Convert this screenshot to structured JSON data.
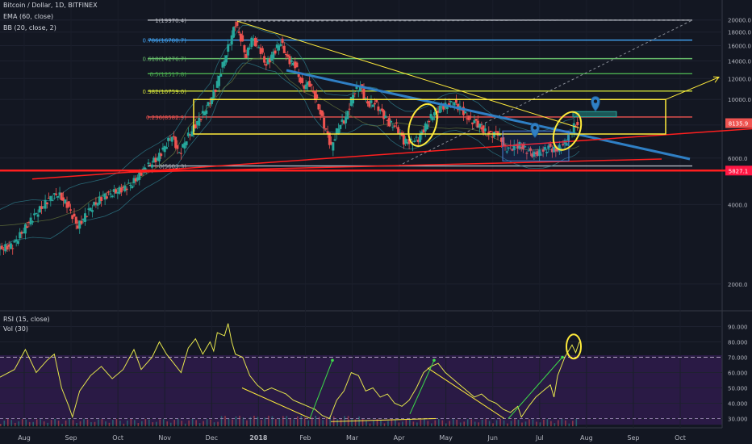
{
  "header": {
    "symbol": "Bitcoin / Dollar, 1D, BITFINEX",
    "ema": "EMA (60, close)",
    "bb": "BB (20, close, 2)",
    "rsi": "RSI (15, close)",
    "vol": "Vol (30)"
  },
  "chart_data": [
    {
      "type": "line",
      "role": "price",
      "title": "Bitcoin / Dollar, 1D, BITFINEX",
      "yscale": "log",
      "ylim": [
        1700,
        22500
      ],
      "y_ticks": [
        2000,
        4000,
        6000,
        8000,
        10000,
        12000,
        14000,
        16000,
        18000,
        20000
      ],
      "y_tick_labels": [
        "2000.0",
        "4000.0",
        "6000.0",
        "8000.0",
        "10000.0",
        "12000.0",
        "14000.0",
        "16000.0",
        "18000.0",
        "20000.0"
      ],
      "x_ticks": [
        "Aug",
        "Sep",
        "Oct",
        "Nov",
        "Dec",
        "2018",
        "Feb",
        "Mar",
        "Apr",
        "May",
        "Jun",
        "Jul",
        "Aug",
        "Sep",
        "Oct"
      ],
      "series": [
        {
          "values": [
            [
              0,
              2700
            ],
            [
              8,
              2800
            ],
            [
              18,
              3500
            ],
            [
              28,
              4200
            ],
            [
              33,
              4400
            ],
            [
              38,
              4000
            ],
            [
              44,
              3300
            ],
            [
              50,
              3800
            ],
            [
              58,
              4300
            ],
            [
              66,
              4500
            ],
            [
              74,
              4800
            ],
            [
              80,
              5400
            ],
            [
              88,
              6000
            ],
            [
              96,
              7300
            ],
            [
              100,
              6200
            ],
            [
              104,
              7100
            ],
            [
              110,
              8200
            ],
            [
              116,
              9500
            ],
            [
              120,
              11000
            ],
            [
              124,
              13500
            ],
            [
              128,
              16500
            ],
            [
              131,
              19500
            ],
            [
              134,
              17000
            ],
            [
              137,
              14500
            ],
            [
              140,
              17000
            ],
            [
              144,
              15800
            ],
            [
              148,
              13500
            ],
            [
              152,
              15000
            ],
            [
              156,
              16500
            ],
            [
              160,
              14200
            ],
            [
              164,
              13500
            ],
            [
              168,
              11200
            ],
            [
              172,
              11500
            ],
            [
              176,
              9800
            ],
            [
              180,
              8000
            ],
            [
              184,
              6600
            ],
            [
              188,
              7900
            ],
            [
              192,
              8500
            ],
            [
              196,
              10500
            ],
            [
              200,
              11200
            ],
            [
              204,
              9600
            ],
            [
              208,
              9700
            ],
            [
              212,
              8900
            ],
            [
              216,
              8100
            ],
            [
              220,
              7900
            ],
            [
              224,
              6950
            ],
            [
              228,
              6900
            ],
            [
              232,
              7100
            ],
            [
              236,
              7900
            ],
            [
              240,
              8800
            ],
            [
              244,
              9300
            ],
            [
              248,
              9500
            ],
            [
              252,
              9700
            ],
            [
              256,
              9100
            ],
            [
              260,
              8400
            ],
            [
              264,
              8200
            ],
            [
              268,
              7600
            ],
            [
              272,
              7350
            ],
            [
              276,
              7500
            ],
            [
              280,
              6500
            ],
            [
              284,
              6600
            ],
            [
              288,
              6700
            ],
            [
              292,
              6400
            ],
            [
              296,
              6200
            ],
            [
              300,
              6300
            ],
            [
              304,
              6600
            ],
            [
              308,
              6400
            ],
            [
              312,
              6700
            ],
            [
              316,
              7400
            ],
            [
              318,
              7900
            ],
            [
              320,
              8100
            ]
          ]
        }
      ],
      "fib_levels": [
        {
          "label": "1(19970.4)",
          "value": 19970.4,
          "color": "#b2b5be"
        },
        {
          "label": "0.786(16780.7)",
          "value": 16780.7,
          "color": "#42a5f5"
        },
        {
          "label": "0.618(14276.7)",
          "value": 14276.7,
          "color": "#66bb6a"
        },
        {
          "label": "0.5(12517.8)",
          "value": 12517.8,
          "color": "#4caf50"
        },
        {
          "label": "0.382(10759.0)",
          "value": 10759.0,
          "color": "#cddc39"
        },
        {
          "label": "0.236(8582.9)",
          "value": 8582.9,
          "color": "#ef5350"
        },
        {
          "label": "0(5603.3)",
          "value": 5603.3,
          "color": "#b2b5be"
        }
      ],
      "price_labels": [
        {
          "text": "8135.9",
          "color": "#ef5350"
        },
        {
          "text": "5827.1",
          "color": "#ff1744"
        }
      ]
    },
    {
      "type": "line",
      "role": "rsi",
      "title": "RSI (15, close)",
      "ylim": [
        25,
        95
      ],
      "y_ticks": [
        30,
        40,
        50,
        60,
        70,
        80,
        90
      ],
      "y_tick_labels": [
        "30.000",
        "40.000",
        "50.000",
        "60.000",
        "70.000",
        "80.000",
        "90.000"
      ],
      "guide_level": 70,
      "series": [
        {
          "values": [
            [
              0,
              57
            ],
            [
              8,
              62
            ],
            [
              14,
              75
            ],
            [
              20,
              60
            ],
            [
              26,
              68
            ],
            [
              30,
              72
            ],
            [
              34,
              50
            ],
            [
              38,
              38
            ],
            [
              40,
              31
            ],
            [
              44,
              48
            ],
            [
              50,
              58
            ],
            [
              56,
              64
            ],
            [
              62,
              56
            ],
            [
              68,
              62
            ],
            [
              74,
              75
            ],
            [
              78,
              62
            ],
            [
              84,
              70
            ],
            [
              88,
              80
            ],
            [
              92,
              72
            ],
            [
              96,
              66
            ],
            [
              100,
              60
            ],
            [
              104,
              76
            ],
            [
              108,
              82
            ],
            [
              112,
              72
            ],
            [
              116,
              80
            ],
            [
              118,
              74
            ],
            [
              120,
              86
            ],
            [
              124,
              84
            ],
            [
              126,
              92
            ],
            [
              128,
              80
            ],
            [
              130,
              72
            ],
            [
              134,
              70
            ],
            [
              138,
              58
            ],
            [
              142,
              52
            ],
            [
              146,
              48
            ],
            [
              150,
              50
            ],
            [
              154,
              48
            ],
            [
              158,
              46
            ],
            [
              162,
              42
            ],
            [
              166,
              40
            ],
            [
              170,
              38
            ],
            [
              174,
              36
            ],
            [
              178,
              32
            ],
            [
              182,
              30
            ],
            [
              186,
              42
            ],
            [
              190,
              48
            ],
            [
              194,
              60
            ],
            [
              198,
              58
            ],
            [
              202,
              48
            ],
            [
              206,
              50
            ],
            [
              210,
              44
            ],
            [
              214,
              46
            ],
            [
              218,
              40
            ],
            [
              222,
              38
            ],
            [
              226,
              42
            ],
            [
              230,
              50
            ],
            [
              234,
              60
            ],
            [
              238,
              64
            ],
            [
              242,
              66
            ],
            [
              246,
              60
            ],
            [
              250,
              56
            ],
            [
              254,
              52
            ],
            [
              258,
              48
            ],
            [
              262,
              44
            ],
            [
              266,
              46
            ],
            [
              270,
              42
            ],
            [
              274,
              40
            ],
            [
              278,
              36
            ],
            [
              282,
              34
            ],
            [
              286,
              38
            ],
            [
              288,
              31
            ],
            [
              292,
              38
            ],
            [
              296,
              44
            ],
            [
              300,
              48
            ],
            [
              304,
              52
            ],
            [
              306,
              44
            ],
            [
              308,
              58
            ],
            [
              312,
              70
            ],
            [
              314,
              74
            ],
            [
              316,
              78
            ],
            [
              318,
              73
            ],
            [
              320,
              80
            ]
          ]
        }
      ]
    }
  ]
}
